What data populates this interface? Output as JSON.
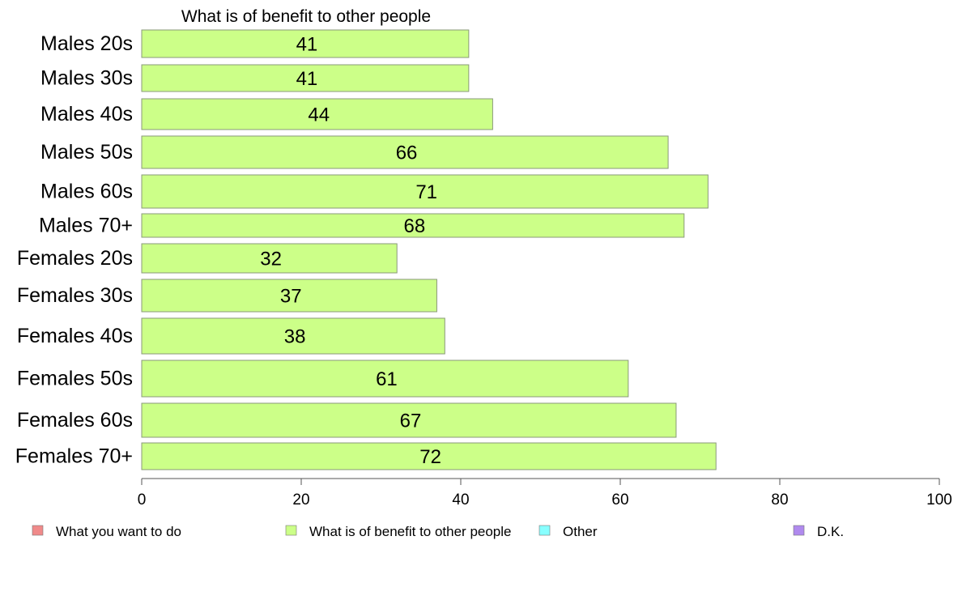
{
  "chart_data": {
    "type": "bar",
    "orientation": "horizontal",
    "title": "What is of benefit to other people",
    "categories": [
      "Males 20s",
      "Males 30s",
      "Males 40s",
      "Males 50s",
      "Males 60s",
      "Males 70+",
      "Females 20s",
      "Females 30s",
      "Females 40s",
      "Females 50s",
      "Females 60s",
      "Females 70+"
    ],
    "values": [
      41,
      41,
      44,
      66,
      71,
      68,
      32,
      37,
      38,
      61,
      67,
      72
    ],
    "data_labels": [
      "41",
      "41",
      "44",
      "66",
      "71",
      "68",
      "32",
      "37",
      "38",
      "61",
      "67",
      "72"
    ],
    "xlim": [
      0,
      100
    ],
    "x_ticks": [
      0,
      20,
      40,
      60,
      80,
      100
    ],
    "grid": false,
    "bar_color": "#ccff88",
    "bar_edge_color": "#8a9a7a",
    "legend_position": "bottom",
    "legend": [
      {
        "label": "What you want to do",
        "color": "#f08a8a"
      },
      {
        "label": "What is of benefit to other people",
        "color": "#ccff88"
      },
      {
        "label": "Other",
        "color": "#88ffff"
      },
      {
        "label": "D.K.",
        "color": "#b08aee"
      }
    ]
  }
}
